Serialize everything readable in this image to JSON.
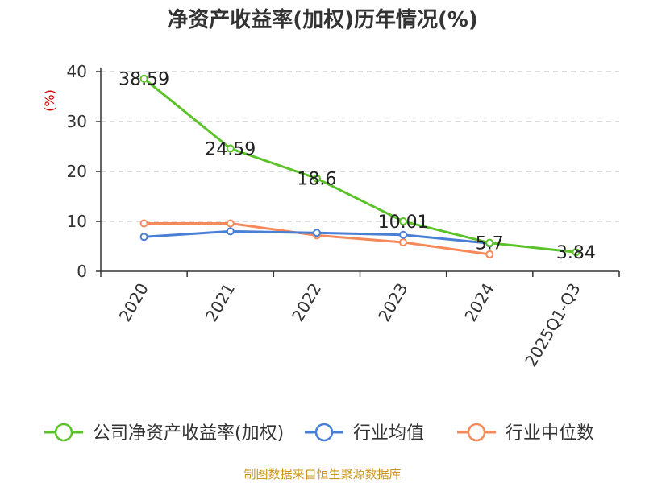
{
  "chart_data": {
    "type": "line",
    "title": "净资产收益率(加权)历年情况(%)",
    "ylabel": "(%)",
    "xlabel": "",
    "categories": [
      "2020",
      "2021",
      "2022",
      "2023",
      "2024",
      "2025Q1-Q3"
    ],
    "ylim": [
      0,
      40
    ],
    "yticks": [
      0,
      10,
      20,
      30,
      40
    ],
    "grid": true,
    "legend_position": "bottom",
    "series": [
      {
        "name": "公司净资产收益率(加权)",
        "color": "#5cc22a",
        "values": [
          38.59,
          24.59,
          18.6,
          10.01,
          5.7,
          3.84
        ],
        "labels": [
          "38.59",
          "24.59",
          "18.6",
          "10.01",
          "5.7",
          "3.84"
        ]
      },
      {
        "name": "行业均值",
        "color": "#4a7fd6",
        "values": [
          6.9,
          8.0,
          7.7,
          7.3,
          5.6,
          null
        ]
      },
      {
        "name": "行业中位数",
        "color": "#f5895a",
        "values": [
          9.6,
          9.6,
          7.2,
          5.8,
          3.4,
          null
        ]
      }
    ],
    "source": "制图数据来自恒生聚源数据库"
  }
}
